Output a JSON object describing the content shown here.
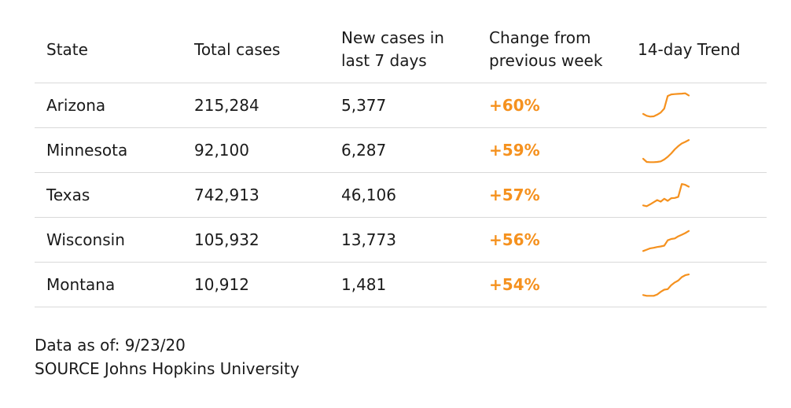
{
  "chart_data": {
    "type": "table",
    "columns": [
      "State",
      "Total cases",
      "New cases in last 7 days",
      "Change from previous week",
      "14-day Trend"
    ],
    "header": {
      "state": "State",
      "total": "Total cases",
      "new_line1": "New cases in",
      "new_line2": "last 7 days",
      "change_line1": "Change from",
      "change_line2": "previous week",
      "trend": "14-day Trend"
    },
    "rows": [
      {
        "state": "Arizona",
        "total": "215,284",
        "new_cases": "5,377",
        "change": "+60%",
        "trend": [
          0.15,
          0.08,
          0.05,
          0.06,
          0.12,
          0.2,
          0.35,
          0.82,
          0.88,
          0.89,
          0.9,
          0.91,
          0.92,
          0.84
        ]
      },
      {
        "state": "Minnesota",
        "total": "92,100",
        "new_cases": "6,287",
        "change": "+59%",
        "trend": [
          0.15,
          0.03,
          0.02,
          0.02,
          0.03,
          0.05,
          0.12,
          0.22,
          0.35,
          0.5,
          0.62,
          0.72,
          0.78,
          0.85
        ]
      },
      {
        "state": "Texas",
        "total": "742,913",
        "new_cases": "46,106",
        "change": "+57%",
        "trend": [
          0.08,
          0.05,
          0.12,
          0.2,
          0.28,
          0.22,
          0.33,
          0.25,
          0.35,
          0.36,
          0.4,
          0.88,
          0.85,
          0.78
        ]
      },
      {
        "state": "Wisconsin",
        "total": "105,932",
        "new_cases": "13,773",
        "change": "+56%",
        "trend": [
          0.05,
          0.1,
          0.15,
          0.17,
          0.2,
          0.22,
          0.25,
          0.45,
          0.5,
          0.52,
          0.6,
          0.66,
          0.72,
          0.8
        ]
      },
      {
        "state": "Montana",
        "total": "10,912",
        "new_cases": "1,481",
        "change": "+54%",
        "trend": [
          0.08,
          0.05,
          0.05,
          0.05,
          0.1,
          0.2,
          0.28,
          0.3,
          0.45,
          0.55,
          0.62,
          0.75,
          0.82,
          0.85
        ]
      }
    ]
  },
  "footer": {
    "data_as_of": "Data as of: 9/23/20",
    "source": "SOURCE Johns Hopkins University"
  },
  "colors": {
    "accent": "#f5911e",
    "text": "#1a1a1a",
    "divider": "#d9d9d9"
  }
}
